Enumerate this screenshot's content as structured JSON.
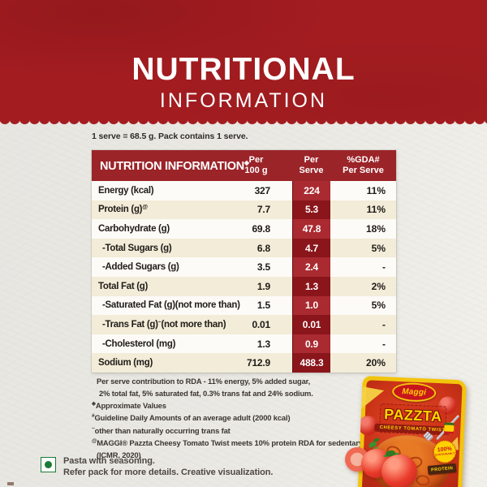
{
  "banner": {
    "title": "NUTRITIONAL",
    "subtitle": "INFORMATION"
  },
  "serve_note": "1 serve = 68.5 g. Pack contains 1 serve.",
  "table": {
    "header": {
      "name": "NUTRITION INFORMATION",
      "name_sup": "◈",
      "per100g_line1": "Per",
      "per100g_line2": "100 g",
      "perserve_line1": "Per",
      "perserve_line2": "Serve",
      "gda_line1": "%GDA#",
      "gda_line2": "Per Serve"
    },
    "rows": [
      {
        "label": "Energy (kcal)",
        "per100g": "327",
        "per_serve": "224",
        "gda": "11%"
      },
      {
        "label": "Protein (g)",
        "sup": "@",
        "per100g": "7.7",
        "per_serve": "5.3",
        "gda": "11%"
      },
      {
        "label": "Carbohydrate (g)",
        "per100g": "69.8",
        "per_serve": "47.8",
        "gda": "18%"
      },
      {
        "label": "-Total Sugars (g)",
        "per100g": "6.8",
        "per_serve": "4.7",
        "gda": "5%"
      },
      {
        "label": "-Added Sugars (g)",
        "per100g": "3.5",
        "per_serve": "2.4",
        "gda": "-"
      },
      {
        "label": "Total Fat (g)",
        "per100g": "1.9",
        "per_serve": "1.3",
        "gda": "2%"
      },
      {
        "label": "-Saturated Fat (g)(not more than)",
        "per100g": "1.5",
        "per_serve": "1.0",
        "gda": "5%"
      },
      {
        "label": "-Trans Fat (g)",
        "sup": "~",
        "suffix": " (not more than)",
        "per100g": "0.01",
        "per_serve": "0.01",
        "gda": "-"
      },
      {
        "label": "-Cholesterol (mg)",
        "per100g": "1.3",
        "per_serve": "0.9",
        "gda": "-"
      },
      {
        "label": "Sodium (mg)",
        "per100g": "712.9",
        "per_serve": "488.3",
        "gda": "20%"
      }
    ]
  },
  "footnotes": [
    {
      "marker": "",
      "text": "Per serve contribution to RDA - 11% energy, 5% added sugar,"
    },
    {
      "marker": "",
      "text": "2% total fat, 5% saturated fat, 0.3% trans fat and 24% sodium."
    },
    {
      "marker": "◈",
      "text": "Approximate Values"
    },
    {
      "marker": "#",
      "text": "Guideline Daily Amounts of an average adult (2000 kcal)"
    },
    {
      "marker": "~",
      "text": "other than naturally occurring trans fat"
    },
    {
      "marker": "@",
      "text": "MAGGI® Pazzta Cheesy Tomato Twist meets 10% protein RDA for sedentary adults"
    },
    {
      "marker": "",
      "text": "(ICMR, 2020)"
    }
  ],
  "veg_note": {
    "line1": "Pasta with seasoning.",
    "line2": "Refer pack for more details. Creative visualization."
  },
  "pack": {
    "brand": "Maggi",
    "name": "PAZZTA",
    "variant": "CHEESY TOMATO TWIST",
    "badge_sustain_line1": "100%",
    "badge_sustain_line2": "SUSTAINABLY",
    "badge_protein": "PROTEIN"
  },
  "colors": {
    "banner_red": "#a31c20",
    "table_header_red": "#9b2429",
    "per_serve_light_red": "#aa2a31",
    "per_serve_dark_red": "#8a151b",
    "row_white": "#fcfbf7",
    "row_cream": "#f2ecd8",
    "paper_bg": "#eae9e4",
    "veg_green": "#1b7a33",
    "pack_yellow": "#f2c40c",
    "pack_red": "#cc3418"
  }
}
